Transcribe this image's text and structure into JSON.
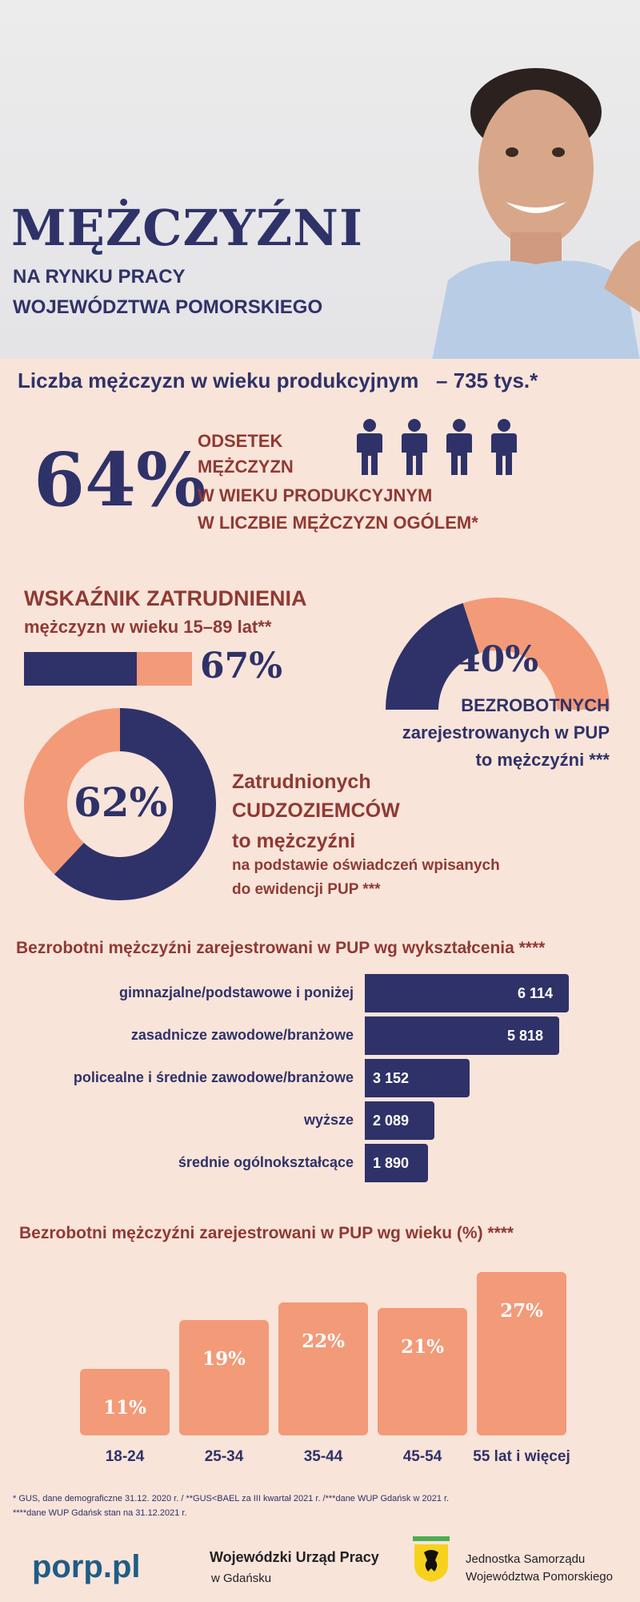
{
  "colors": {
    "navy": "#2f3268",
    "salmon": "#f39a78",
    "rust": "#8f3a33",
    "background": "#f9e4da"
  },
  "header": {
    "title": "MĘŻCZYŹNI",
    "subtitle_line1": "NA RYNKU PRACY",
    "subtitle_line2": "WOJEWÓDZTWA POMORSKIEGO"
  },
  "population": {
    "label": "Liczba mężczyzn w wieku produkcyjnym",
    "value": "– 735 tys.*"
  },
  "working_age_share": {
    "value": "64%",
    "lines": [
      "ODSETEK",
      "MĘŻCZYZN",
      "W WIEKU PRODUKCYJNYM",
      "W LICZBIE MĘŻCZYZN OGÓLEM*"
    ],
    "icon": "person-icon",
    "icon_count": 4
  },
  "employment_rate": {
    "title": "WSKAŹNIK ZATRUDNIENIA",
    "subtitle": "mężczyzn w wieku 15–89 lat**",
    "value": "67%",
    "fraction": 0.67
  },
  "unemployed_share": {
    "value": "40%",
    "fraction": 0.4,
    "lines": [
      "BEZROBOTNYCH",
      "zarejestrowanych w PUP",
      "to mężczyźni ***"
    ]
  },
  "foreigners_share": {
    "value": "62%",
    "fraction": 0.62,
    "lines": [
      "Zatrudnionych",
      "CUDZOZIEMCÓW",
      "to mężczyźni",
      "na podstawie oświadczeń wpisanych",
      "do ewidencji PUP ***"
    ]
  },
  "chart_data": [
    {
      "type": "bar",
      "orientation": "horizontal",
      "title": "Bezrobotni mężczyźni zarejestrowani w PUP wg wykształcenia ****",
      "categories": [
        "gimnazjalne/podstawowe i poniżej",
        "zasadnicze zawodowe/branżowe",
        "policealne i średnie zawodowe/branżowe",
        "wyższe",
        "średnie ogólnokształcące"
      ],
      "values": [
        6114,
        5818,
        3152,
        2089,
        1890
      ],
      "value_labels": [
        "6 114",
        "5 818",
        "3 152",
        "2 089",
        "1 890"
      ],
      "bar_color": "#2f3268"
    },
    {
      "type": "bar",
      "title": "Bezrobotni mężczyźni zarejestrowani w PUP wg wieku (%) ****",
      "categories": [
        "18-24",
        "25-34",
        "35-44",
        "45-54",
        "55 lat i więcej"
      ],
      "values": [
        11,
        19,
        22,
        21,
        27
      ],
      "value_labels": [
        "11%",
        "19%",
        "22%",
        "21%",
        "27%"
      ],
      "bar_color": "#f39a78"
    }
  ],
  "footnotes": {
    "line1": "* GUS, dane demograficzne 31.12. 2020 r. / **GUS<BAEL za III kwartał 2021 r. /***dane WUP Gdańsk w 2021 r.",
    "line2": "****dane WUP Gdańsk stan na 31.12.2021 r."
  },
  "footer": {
    "porp": "porp.pl",
    "wup_name": "Wojewódzki Urząd Pracy",
    "wup_city": "w Gdańsku",
    "js_line1": "Jednostka Samorządu",
    "js_line2": "Województwa Pomorskiego"
  }
}
